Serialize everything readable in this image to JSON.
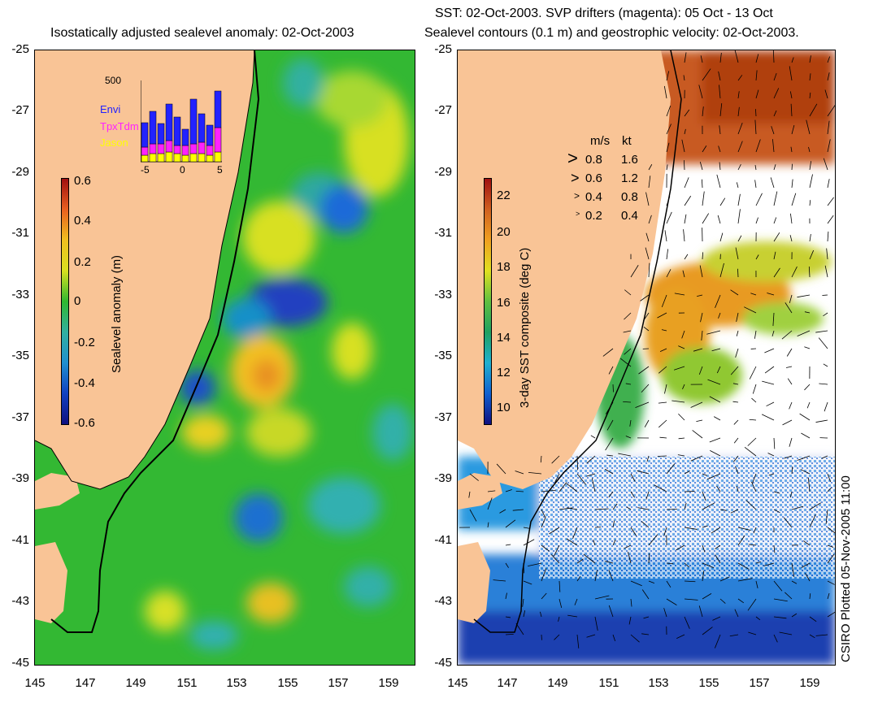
{
  "left": {
    "title": "Isostatically adjusted sealevel anomaly: 02-Oct-2003",
    "yticks": [
      "-25",
      "-27",
      "-29",
      "-31",
      "-33",
      "-35",
      "-37",
      "-39",
      "-41",
      "-43",
      "-45"
    ],
    "xticks": [
      "145",
      "147",
      "149",
      "151",
      "153",
      "155",
      "157",
      "159"
    ],
    "colorbar": {
      "label": "Sealevel anomaly (m)",
      "ticks": [
        "0.6",
        "0.4",
        "0.2",
        "0",
        "-0.2",
        "-0.4",
        "-0.6"
      ]
    },
    "inset": {
      "ymax": "500",
      "xticks": [
        "-5",
        "0",
        "5"
      ],
      "legend": [
        {
          "name": "Envi",
          "color": "#2222ff"
        },
        {
          "name": "TpxTdm",
          "color": "#ff22ff"
        },
        {
          "name": "Jason",
          "color": "#ffff00"
        }
      ],
      "bars": [
        {
          "envi": 0.3,
          "tpx": 0.1,
          "jason": 0.08
        },
        {
          "envi": 0.4,
          "tpx": 0.12,
          "jason": 0.1
        },
        {
          "envi": 0.25,
          "tpx": 0.12,
          "jason": 0.1
        },
        {
          "envi": 0.45,
          "tpx": 0.14,
          "jason": 0.12
        },
        {
          "envi": 0.35,
          "tpx": 0.1,
          "jason": 0.1
        },
        {
          "envi": 0.2,
          "tpx": 0.12,
          "jason": 0.08
        },
        {
          "envi": 0.55,
          "tpx": 0.12,
          "jason": 0.1
        },
        {
          "envi": 0.35,
          "tpx": 0.14,
          "jason": 0.1
        },
        {
          "envi": 0.25,
          "tpx": 0.12,
          "jason": 0.08
        },
        {
          "envi": 0.45,
          "tpx": 0.3,
          "jason": 0.12
        }
      ]
    }
  },
  "right": {
    "title_line1": "SST: 02-Oct-2003. SVP drifters (magenta): 05 Oct - 13 Oct",
    "title_line2": "Sealevel contours (0.1 m) and geostrophic velocity: 02-Oct-2003.",
    "yticks": [
      "-25",
      "-27",
      "-29",
      "-31",
      "-33",
      "-35",
      "-37",
      "-39",
      "-41",
      "-43",
      "-45"
    ],
    "xticks": [
      "145",
      "147",
      "149",
      "151",
      "153",
      "155",
      "157",
      "159"
    ],
    "colorbar": {
      "label": "3-day SST composite (deg C)",
      "ticks": [
        "22",
        "20",
        "18",
        "16",
        "14",
        "12",
        "10"
      ]
    },
    "velocity_legend": {
      "header_ms": "m/s",
      "header_kt": "kt",
      "rows": [
        {
          "ms": "0.8",
          "kt": "1.6"
        },
        {
          "ms": "0.6",
          "kt": "1.2"
        },
        {
          "ms": "0.4",
          "kt": "0.8"
        },
        {
          "ms": "0.2",
          "kt": "0.4"
        }
      ]
    },
    "credit": "CSIRO Plotted 05-Nov-2005 11:00"
  },
  "colors": {
    "land": "#f9c496",
    "coast_line": "#000000",
    "sla_base": "#33b833",
    "missing": "#ffffff"
  }
}
